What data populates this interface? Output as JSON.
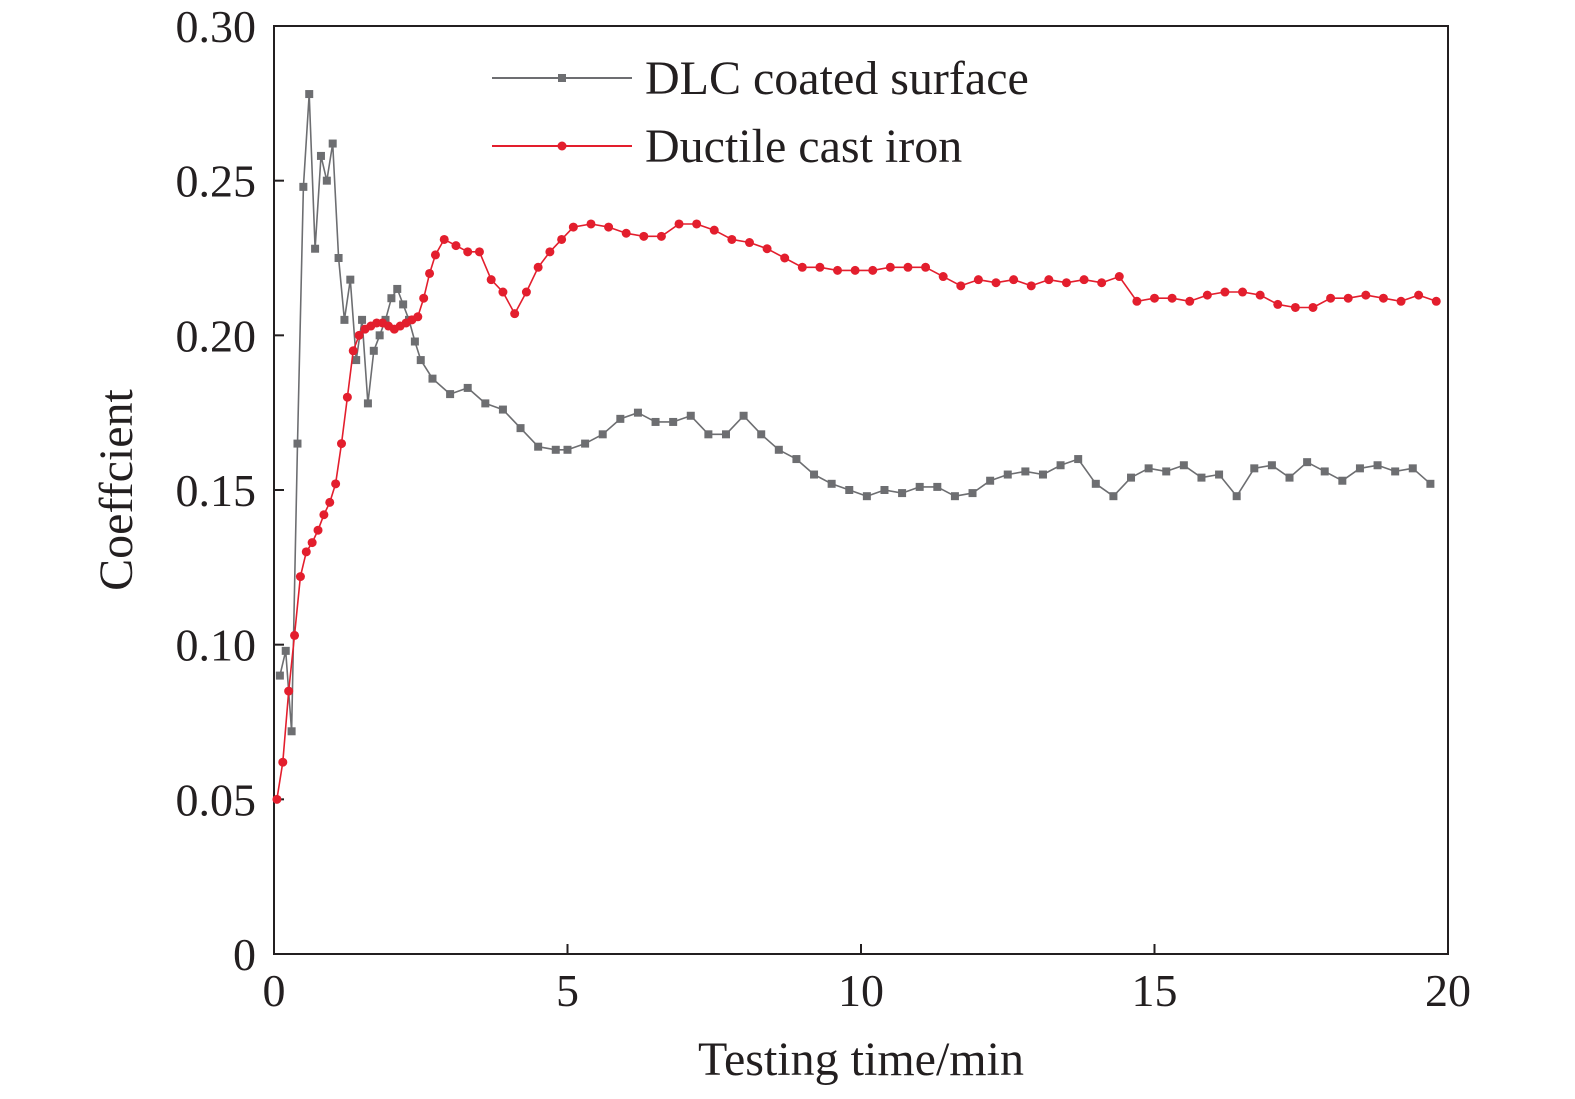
{
  "chart_data": {
    "type": "line",
    "title": "",
    "xlabel": "Testing time/min",
    "ylabel": "Coeffcient",
    "xlim": [
      0,
      20
    ],
    "ylim": [
      0,
      0.3
    ],
    "x_ticks": [
      0,
      5,
      10,
      15,
      20
    ],
    "x_tick_labels": [
      "0",
      "5",
      "10",
      "15",
      "20"
    ],
    "y_ticks": [
      0,
      0.05,
      0.1,
      0.15,
      0.2,
      0.25,
      0.3
    ],
    "y_tick_labels": [
      "0",
      "0.05",
      "0.10",
      "0.15",
      "0.20",
      "0.25",
      "0.30"
    ],
    "grid": false,
    "legend_position": "top-center",
    "series": [
      {
        "name": "DLC coated surface",
        "color": "#6d6e71",
        "marker": "square",
        "x": [
          0.1,
          0.2,
          0.3,
          0.4,
          0.5,
          0.6,
          0.7,
          0.8,
          0.9,
          1.0,
          1.1,
          1.2,
          1.3,
          1.4,
          1.5,
          1.6,
          1.7,
          1.8,
          1.9,
          2.0,
          2.1,
          2.2,
          2.3,
          2.4,
          2.5,
          2.7,
          3.0,
          3.3,
          3.6,
          3.9,
          4.2,
          4.5,
          4.8,
          5.0,
          5.3,
          5.6,
          5.9,
          6.2,
          6.5,
          6.8,
          7.1,
          7.4,
          7.7,
          8.0,
          8.3,
          8.6,
          8.9,
          9.2,
          9.5,
          9.8,
          10.1,
          10.4,
          10.7,
          11.0,
          11.3,
          11.6,
          11.9,
          12.2,
          12.5,
          12.8,
          13.1,
          13.4,
          13.7,
          14.0,
          14.3,
          14.6,
          14.9,
          15.2,
          15.5,
          15.8,
          16.1,
          16.4,
          16.7,
          17.0,
          17.3,
          17.6,
          17.9,
          18.2,
          18.5,
          18.8,
          19.1,
          19.4,
          19.7
        ],
        "y": [
          0.09,
          0.098,
          0.072,
          0.165,
          0.248,
          0.278,
          0.228,
          0.258,
          0.25,
          0.262,
          0.225,
          0.205,
          0.218,
          0.192,
          0.205,
          0.178,
          0.195,
          0.2,
          0.205,
          0.212,
          0.215,
          0.21,
          0.205,
          0.198,
          0.192,
          0.186,
          0.181,
          0.183,
          0.178,
          0.176,
          0.17,
          0.164,
          0.163,
          0.163,
          0.165,
          0.168,
          0.173,
          0.175,
          0.172,
          0.172,
          0.174,
          0.168,
          0.168,
          0.174,
          0.168,
          0.163,
          0.16,
          0.155,
          0.152,
          0.15,
          0.148,
          0.15,
          0.149,
          0.151,
          0.151,
          0.148,
          0.149,
          0.153,
          0.155,
          0.156,
          0.155,
          0.158,
          0.16,
          0.152,
          0.148,
          0.154,
          0.157,
          0.156,
          0.158,
          0.154,
          0.155,
          0.148,
          0.157,
          0.158,
          0.154,
          0.159,
          0.156,
          0.153,
          0.157,
          0.158,
          0.156,
          0.157,
          0.152
        ]
      },
      {
        "name": "Ductile cast iron",
        "color": "#e31e2d",
        "marker": "circle",
        "x": [
          0.05,
          0.15,
          0.25,
          0.35,
          0.45,
          0.55,
          0.65,
          0.75,
          0.85,
          0.95,
          1.05,
          1.15,
          1.25,
          1.35,
          1.45,
          1.55,
          1.65,
          1.75,
          1.85,
          1.95,
          2.05,
          2.15,
          2.25,
          2.35,
          2.45,
          2.55,
          2.65,
          2.75,
          2.9,
          3.1,
          3.3,
          3.5,
          3.7,
          3.9,
          4.1,
          4.3,
          4.5,
          4.7,
          4.9,
          5.1,
          5.4,
          5.7,
          6.0,
          6.3,
          6.6,
          6.9,
          7.2,
          7.5,
          7.8,
          8.1,
          8.4,
          8.7,
          9.0,
          9.3,
          9.6,
          9.9,
          10.2,
          10.5,
          10.8,
          11.1,
          11.4,
          11.7,
          12.0,
          12.3,
          12.6,
          12.9,
          13.2,
          13.5,
          13.8,
          14.1,
          14.4,
          14.7,
          15.0,
          15.3,
          15.6,
          15.9,
          16.2,
          16.5,
          16.8,
          17.1,
          17.4,
          17.7,
          18.0,
          18.3,
          18.6,
          18.9,
          19.2,
          19.5,
          19.8
        ],
        "y": [
          0.05,
          0.062,
          0.085,
          0.103,
          0.122,
          0.13,
          0.133,
          0.137,
          0.142,
          0.146,
          0.152,
          0.165,
          0.18,
          0.195,
          0.2,
          0.202,
          0.203,
          0.204,
          0.204,
          0.203,
          0.202,
          0.203,
          0.204,
          0.205,
          0.206,
          0.212,
          0.22,
          0.226,
          0.231,
          0.229,
          0.227,
          0.227,
          0.218,
          0.214,
          0.207,
          0.214,
          0.222,
          0.227,
          0.231,
          0.235,
          0.236,
          0.235,
          0.233,
          0.232,
          0.232,
          0.236,
          0.236,
          0.234,
          0.231,
          0.23,
          0.228,
          0.225,
          0.222,
          0.222,
          0.221,
          0.221,
          0.221,
          0.222,
          0.222,
          0.222,
          0.219,
          0.216,
          0.218,
          0.217,
          0.218,
          0.216,
          0.218,
          0.217,
          0.218,
          0.217,
          0.219,
          0.211,
          0.212,
          0.212,
          0.211,
          0.213,
          0.214,
          0.214,
          0.213,
          0.21,
          0.209,
          0.209,
          0.212,
          0.212,
          0.213,
          0.212,
          0.211,
          0.213,
          0.211
        ]
      }
    ]
  }
}
